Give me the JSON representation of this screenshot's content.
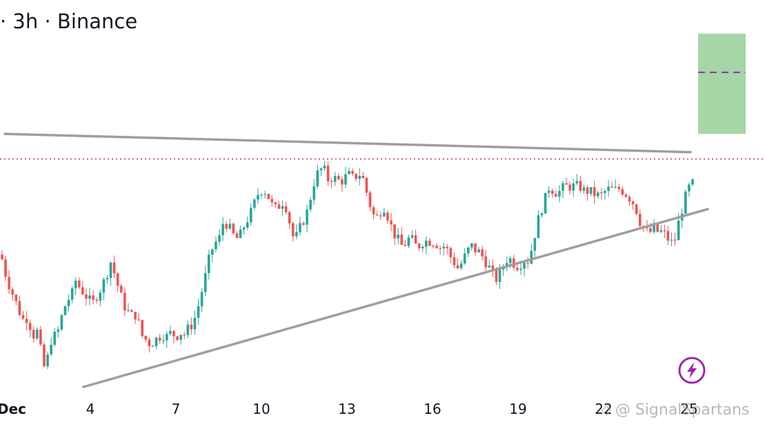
{
  "header": {
    "title": "· 3h · Binance"
  },
  "watermark": {
    "text": "@ SignalSpartans",
    "icon": "chevron-diamond-icon"
  },
  "badge": {
    "icon": "lightning-bolt-icon",
    "color": "#9c27b0"
  },
  "colors": {
    "up": "#26a69a",
    "down": "#ef5350",
    "trendline": "#9e9e9e",
    "target_zone": "#a5d6a7",
    "target_mid": "#9c27b0",
    "price_line": "#d32f2f"
  },
  "chart_data": {
    "type": "candlestick",
    "title": "",
    "interval": "3h",
    "exchange": "Binance",
    "x_tick_labels": [
      "Dec",
      "4",
      "7",
      "10",
      "13",
      "16",
      "19",
      "22",
      "25"
    ],
    "y_axis_visible": false,
    "grid": false,
    "candle_path_close_levels": [
      0.56,
      0.48,
      0.43,
      0.38,
      0.33,
      0.29,
      0.31,
      0.22,
      0.25,
      0.15,
      0.06,
      0.2,
      0.22,
      0.25,
      0.33,
      0.38,
      0.4,
      0.47,
      0.43,
      0.41,
      0.38,
      0.37,
      0.41,
      0.44,
      0.49,
      0.55,
      0.49,
      0.42,
      0.36,
      0.33,
      0.31,
      0.32,
      0.23,
      0.21,
      0.19,
      0.2,
      0.22,
      0.23,
      0.22,
      0.24,
      0.22,
      0.24,
      0.23,
      0.26,
      0.28,
      0.34,
      0.42,
      0.5,
      0.59,
      0.63,
      0.65,
      0.73,
      0.71,
      0.67,
      0.65,
      0.67,
      0.72,
      0.75,
      0.8,
      0.85,
      0.87,
      0.85,
      0.8,
      0.78,
      0.8,
      0.82,
      0.74,
      0.66,
      0.66,
      0.72,
      0.75,
      0.83,
      0.91,
      0.95,
      0.96,
      0.91,
      0.92,
      0.91,
      0.9,
      0.92,
      0.93,
      0.91,
      0.94,
      0.92,
      0.85,
      0.78,
      0.73,
      0.77,
      0.79,
      0.74,
      0.68,
      0.65,
      0.62,
      0.63,
      0.66,
      0.62,
      0.62,
      0.64,
      0.64,
      0.64,
      0.63,
      0.61,
      0.62,
      0.58,
      0.55,
      0.52,
      0.55,
      0.59,
      0.62,
      0.6,
      0.59,
      0.56,
      0.53,
      0.49,
      0.47,
      0.51,
      0.56,
      0.56,
      0.54,
      0.53,
      0.56,
      0.55,
      0.61,
      0.7,
      0.77,
      0.82,
      0.88,
      0.86,
      0.85,
      0.87,
      0.88,
      0.88,
      0.88,
      0.88,
      0.86,
      0.86,
      0.85,
      0.84,
      0.84,
      0.86,
      0.87,
      0.86,
      0.87,
      0.86,
      0.84,
      0.82,
      0.78,
      0.72,
      0.69,
      0.67,
      0.7,
      0.68,
      0.68,
      0.66,
      0.63,
      0.65,
      0.74,
      0.81,
      0.87,
      0.89
    ],
    "level_note": "levels are relative (0 = bottom of visible range, 1 = top); no price axis is printed",
    "trendlines": [
      {
        "name": "upper",
        "from": {
          "day": 1.0,
          "level": 1.11
        },
        "to": {
          "day": 25.0,
          "level": 1.03
        }
      },
      {
        "name": "lower",
        "from": {
          "day": 3.75,
          "level": 0.0
        },
        "to": {
          "day": 25.6,
          "level": 0.78
        }
      }
    ],
    "target_zone": {
      "level_low": 1.11,
      "level_high": 1.55,
      "level_mid": 1.38
    },
    "current_price_level": 1.0
  }
}
